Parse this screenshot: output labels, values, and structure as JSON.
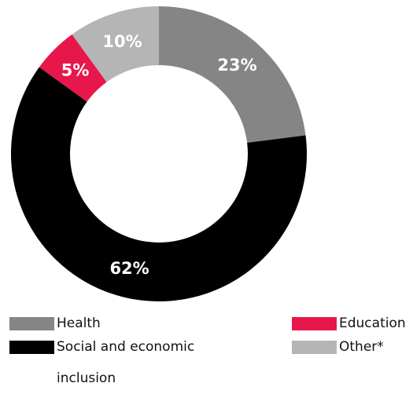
{
  "chart_data": {
    "type": "pie",
    "donut": true,
    "categories": [
      "Health",
      "Social and economic inclusion",
      "Education",
      "Other*"
    ],
    "values": [
      23,
      62,
      5,
      10
    ],
    "labels": [
      "23%",
      "62%",
      "5%",
      "10%"
    ],
    "colors": [
      "#858585",
      "#000000",
      "#e8174b",
      "#b5b5b5"
    ],
    "legend_position": "bottom"
  }
}
